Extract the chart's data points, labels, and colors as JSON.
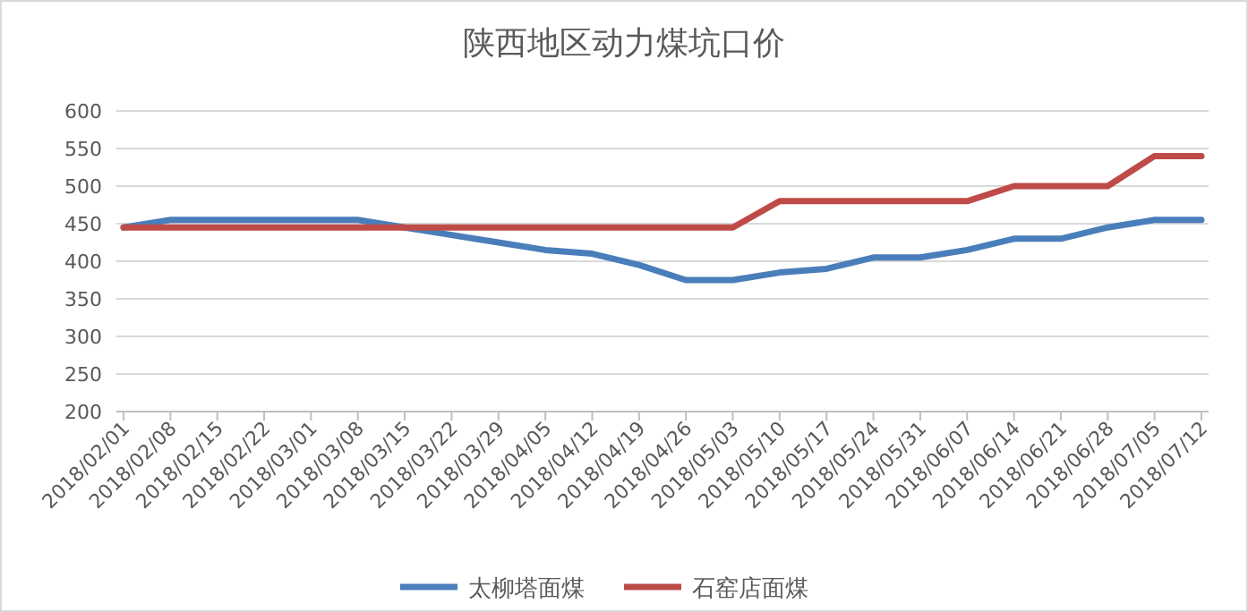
{
  "chart_data": {
    "type": "line",
    "title": "陕西地区动力煤坑口价",
    "categories": [
      "2018/02/01",
      "2018/02/08",
      "2018/02/15",
      "2018/02/22",
      "2018/03/01",
      "2018/03/08",
      "2018/03/15",
      "2018/03/22",
      "2018/03/29",
      "2018/04/05",
      "2018/04/12",
      "2018/04/19",
      "2018/04/26",
      "2018/05/03",
      "2018/05/10",
      "2018/05/17",
      "2018/05/24",
      "2018/05/31",
      "2018/06/07",
      "2018/06/14",
      "2018/06/21",
      "2018/06/28",
      "2018/07/05",
      "2018/07/12"
    ],
    "series": [
      {
        "name": "太柳塔面煤",
        "color": "#4a7ebb",
        "values": [
          445,
          455,
          455,
          455,
          455,
          455,
          445,
          435,
          425,
          415,
          410,
          395,
          375,
          375,
          385,
          390,
          405,
          405,
          415,
          430,
          430,
          445,
          455,
          455
        ]
      },
      {
        "name": "石窑店面煤",
        "color": "#be4b48",
        "values": [
          445,
          445,
          445,
          445,
          445,
          445,
          445,
          445,
          445,
          445,
          445,
          445,
          445,
          445,
          480,
          480,
          480,
          480,
          480,
          500,
          500,
          500,
          540,
          540
        ]
      }
    ],
    "ylim": [
      200,
      600
    ],
    "yticks": [
      200,
      250,
      300,
      350,
      400,
      450,
      500,
      550,
      600
    ],
    "grid": "y",
    "legend": "bottom",
    "marker": "none",
    "line_style": "solid"
  }
}
